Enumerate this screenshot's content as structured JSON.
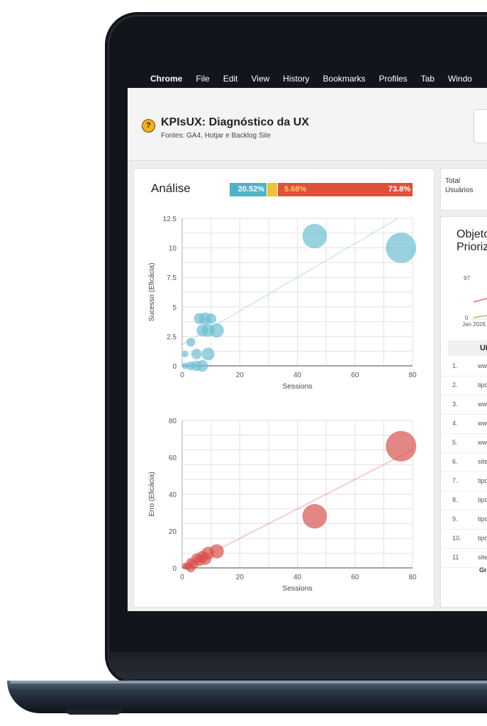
{
  "menubar": {
    "apple_icon": "",
    "items": [
      "Chrome",
      "File",
      "Edit",
      "View",
      "History",
      "Bookmarks",
      "Profiles",
      "Tab",
      "Windo"
    ]
  },
  "header": {
    "title": "KPIsUX: Diagnóstico da UX",
    "subtitle": "Fontes: GA4, Hotjar e Backlog Site",
    "logo_icon": "lightbulb-logo-icon"
  },
  "analise": {
    "title": "Análise",
    "stackbar": {
      "success_pct": "20.52%",
      "mid_pct": "5.68%",
      "error_pct": "73.8%",
      "colors": {
        "success": "#4fb3c8",
        "mid": "#f0c231",
        "error": "#e0513c"
      }
    }
  },
  "total": {
    "label": "Total\nUsuários"
  },
  "objetivos": {
    "title": "Objeto\nPrioriz",
    "tick_top": "97",
    "tick_zero": "0",
    "tick_date": "Jan 2026",
    "url_header": "UR",
    "rows": [
      {
        "n": "1.",
        "u": "ww"
      },
      {
        "n": "2.",
        "u": "tipo"
      },
      {
        "n": "3.",
        "u": "ww"
      },
      {
        "n": "4.",
        "u": "ww"
      },
      {
        "n": "5.",
        "u": "ww"
      },
      {
        "n": "6.",
        "u": "site"
      },
      {
        "n": "7.",
        "u": "tipo"
      },
      {
        "n": "8.",
        "u": "tipo"
      },
      {
        "n": "9.",
        "u": "tipo"
      },
      {
        "n": "10.",
        "u": "tipo"
      },
      {
        "n": "11",
        "u": "site"
      }
    ],
    "footer": "Gra"
  },
  "chart_data": [
    {
      "type": "scatter",
      "xlabel": "Sessions",
      "ylabel": "Sucesso (Eficácia)",
      "xlim": [
        0,
        80
      ],
      "ylim": [
        0,
        12.5
      ],
      "xticks": [
        "0",
        "20",
        "40",
        "60",
        "80"
      ],
      "yticks": [
        "0",
        "2.5",
        "5",
        "7.5",
        "10",
        "12.5"
      ],
      "color": "#6cbfd2",
      "trendline": {
        "x": [
          0,
          75
        ],
        "y": [
          1.8,
          12.5
        ]
      },
      "points": [
        {
          "x": 46,
          "y": 11,
          "size": 46
        },
        {
          "x": 76,
          "y": 10,
          "size": 76
        },
        {
          "x": 6,
          "y": 4,
          "size": 6
        },
        {
          "x": 8,
          "y": 4,
          "size": 8
        },
        {
          "x": 10,
          "y": 4,
          "size": 5
        },
        {
          "x": 7,
          "y": 3,
          "size": 7
        },
        {
          "x": 9,
          "y": 3,
          "size": 9
        },
        {
          "x": 12,
          "y": 3,
          "size": 12
        },
        {
          "x": 3,
          "y": 2,
          "size": 3
        },
        {
          "x": 5,
          "y": 1,
          "size": 5
        },
        {
          "x": 9,
          "y": 1,
          "size": 9
        },
        {
          "x": 1,
          "y": 1,
          "size": 1
        },
        {
          "x": 1,
          "y": 0,
          "size": 1
        },
        {
          "x": 3,
          "y": 0,
          "size": 3
        },
        {
          "x": 5,
          "y": 0,
          "size": 5
        },
        {
          "x": 7,
          "y": 0,
          "size": 7
        }
      ]
    },
    {
      "type": "scatter",
      "xlabel": "Sessions",
      "ylabel": "Erro (Eficácia)",
      "xlim": [
        0,
        80
      ],
      "ylim": [
        0,
        80
      ],
      "xticks": [
        "0",
        "20",
        "40",
        "60",
        "80"
      ],
      "yticks": [
        "0",
        "20",
        "40",
        "60",
        "80"
      ],
      "color": "#d9534f",
      "trendline": {
        "x": [
          0,
          80
        ],
        "y": [
          0,
          64
        ]
      },
      "points": [
        {
          "x": 76,
          "y": 66,
          "size": 76
        },
        {
          "x": 46,
          "y": 28,
          "size": 46
        },
        {
          "x": 12,
          "y": 9,
          "size": 12
        },
        {
          "x": 9,
          "y": 8,
          "size": 9
        },
        {
          "x": 7,
          "y": 6,
          "size": 7
        },
        {
          "x": 5,
          "y": 5,
          "size": 5
        },
        {
          "x": 8,
          "y": 5,
          "size": 8
        },
        {
          "x": 6,
          "y": 4,
          "size": 6
        },
        {
          "x": 3,
          "y": 3,
          "size": 3
        },
        {
          "x": 4,
          "y": 2,
          "size": 4
        },
        {
          "x": 2,
          "y": 1,
          "size": 2
        },
        {
          "x": 1,
          "y": 1,
          "size": 1
        },
        {
          "x": 3,
          "y": 0,
          "size": 3
        }
      ]
    }
  ]
}
